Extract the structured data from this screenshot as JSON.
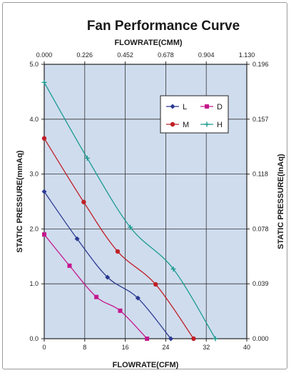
{
  "chart_data": {
    "type": "line",
    "title": "Fan Performance Curve",
    "xlabel_top": "FLOWRATE(CMM)",
    "xlabel": "FLOWRATE(CFM)",
    "ylabel": "STATIC PRESSURE(mmAq)",
    "ylabel_right": "STATIC PRESSURE(InAq)",
    "xlim": [
      0,
      40
    ],
    "ylim": [
      0,
      5.0
    ],
    "x_ticks": [
      "0",
      "8",
      "16",
      "24",
      "32",
      "40"
    ],
    "x_ticks_top": [
      "0.000",
      "0.226",
      "0.452",
      "0.678",
      "0.904",
      "1.130"
    ],
    "y_ticks": [
      "0.0",
      "1.0",
      "2.0",
      "3.0",
      "4.0",
      "5.0"
    ],
    "y_ticks_right": [
      "0.000",
      "0.039",
      "0.078",
      "0.118",
      "0.157",
      "0.196"
    ],
    "grid": true,
    "legend_position": "top-right",
    "series": [
      {
        "name": "L",
        "color": "#2b3990",
        "marker": "diamond",
        "x": [
          0,
          6.5,
          12.5,
          18.5,
          25.0
        ],
        "y": [
          2.68,
          1.82,
          1.12,
          0.74,
          0.0
        ]
      },
      {
        "name": "D",
        "color": "#c4178c",
        "marker": "square",
        "x": [
          0,
          5.0,
          10.3,
          15.0,
          20.3
        ],
        "y": [
          1.9,
          1.33,
          0.76,
          0.51,
          0.0
        ]
      },
      {
        "name": "M",
        "color": "#bf2026",
        "marker": "circle",
        "x": [
          0,
          7.8,
          14.5,
          22.0,
          29.5
        ],
        "y": [
          3.65,
          2.49,
          1.59,
          0.99,
          0.0
        ]
      },
      {
        "name": "H",
        "color": "#1a9b8f",
        "marker": "plus",
        "x": [
          0,
          8.5,
          17.0,
          25.5,
          33.8
        ],
        "y": [
          4.67,
          3.29,
          2.03,
          1.27,
          0.0
        ]
      }
    ]
  }
}
